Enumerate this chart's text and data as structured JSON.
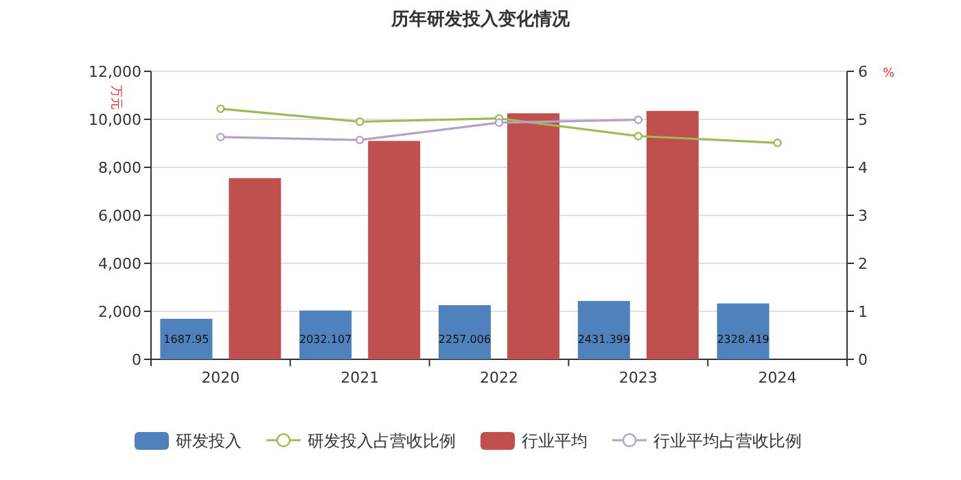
{
  "chart_data": {
    "type": "bar",
    "title": "历年研发投入变化情况",
    "ylabel": "万元",
    "y2label": "%",
    "categories": [
      "2020",
      "2021",
      "2022",
      "2023",
      "2024"
    ],
    "series": [
      {
        "name": "研发投入",
        "type": "bar",
        "color": "#4f81bd",
        "values": [
          1687.95,
          2032.107,
          2257.006,
          2431.399,
          2328.419
        ],
        "value_labels": [
          "1687.95",
          "2032.107",
          "2257.006",
          "2431.399",
          "2328.419"
        ]
      },
      {
        "name": "研发投入占营收比例",
        "type": "line",
        "axis": "y2",
        "color": "#9bbb59",
        "values": [
          5.22,
          4.95,
          5.02,
          4.65,
          4.51
        ]
      },
      {
        "name": "行业平均",
        "type": "bar",
        "color": "#c0504d",
        "values": [
          7550,
          9100,
          10250,
          10350,
          null
        ]
      },
      {
        "name": "行业平均占营收比例",
        "type": "line",
        "axis": "y2",
        "color": "#b3a2c7",
        "values": [
          4.63,
          4.57,
          4.93,
          4.99,
          null
        ]
      }
    ],
    "ylim": [
      0,
      12000
    ],
    "yticks": [
      {
        "value": 0,
        "label": "0"
      },
      {
        "value": 2000,
        "label": "2,000"
      },
      {
        "value": 4000,
        "label": "4,000"
      },
      {
        "value": 6000,
        "label": "6,000"
      },
      {
        "value": 8000,
        "label": "8,000"
      },
      {
        "value": 10000,
        "label": "10,000"
      },
      {
        "value": 12000,
        "label": "12,000"
      }
    ],
    "y2lim": [
      0,
      6
    ],
    "y2ticks": [
      0,
      1,
      2,
      3,
      4,
      5,
      6
    ],
    "grid": "y",
    "legend": "bottom",
    "marker": "circle"
  }
}
